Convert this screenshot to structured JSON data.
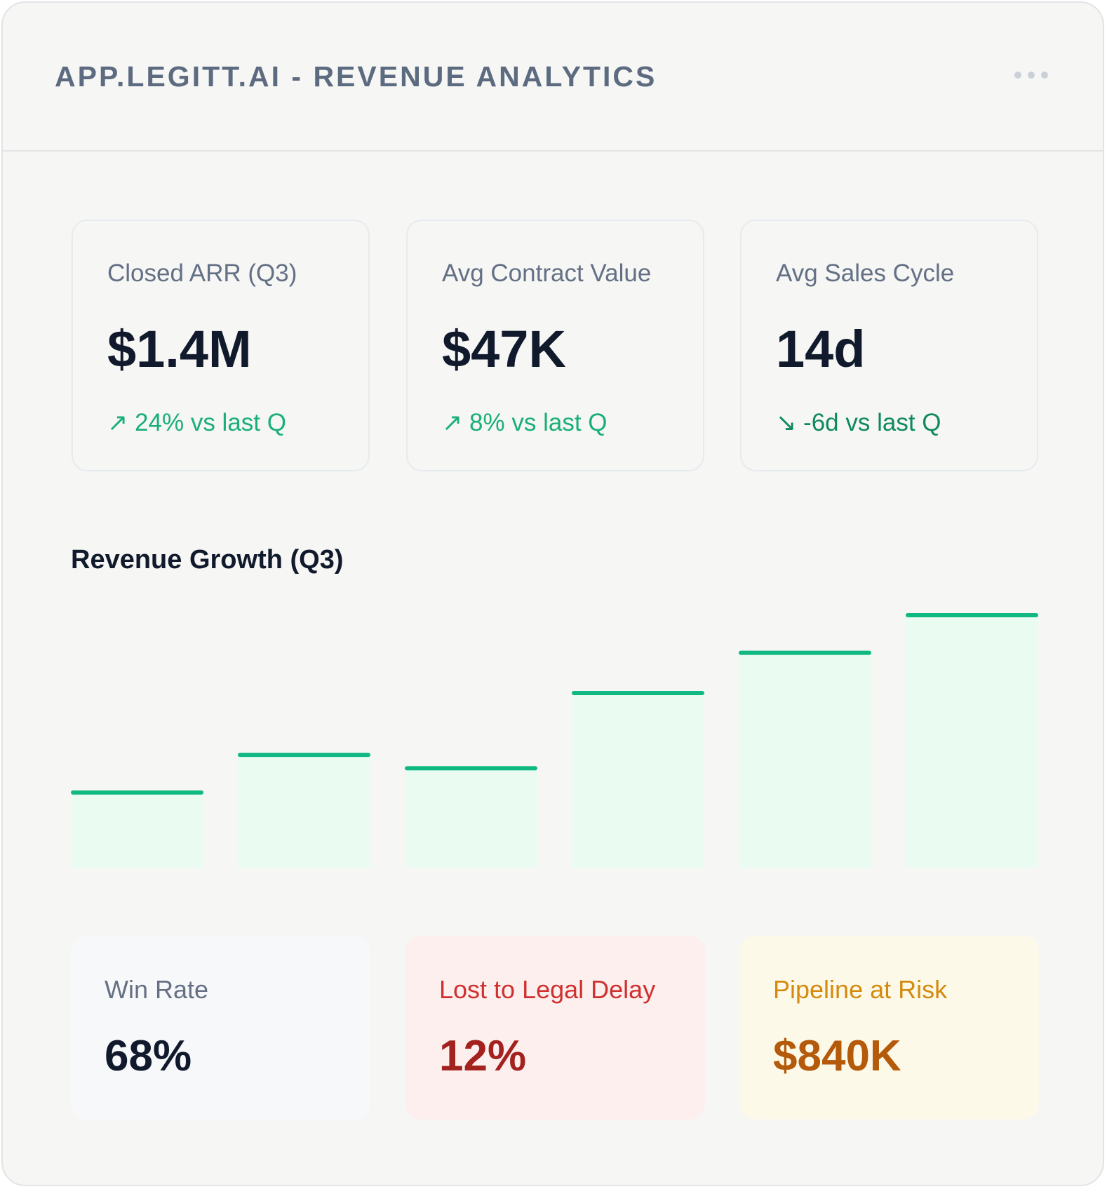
{
  "header": {
    "title": "APP.LEGITT.AI - REVENUE ANALYTICS"
  },
  "kpis": [
    {
      "label": "Closed ARR (Q3)",
      "value": "$1.4M",
      "delta": "↗ 24% vs last Q"
    },
    {
      "label": "Avg Contract Value",
      "value": "$47K",
      "delta": "↗ 8% vs last Q"
    },
    {
      "label": "Avg Sales Cycle",
      "value": "14d",
      "delta": "↘ -6d vs last Q"
    }
  ],
  "chart_data": {
    "type": "bar",
    "title": "Revenue Growth (Q3)",
    "values": [
      28,
      42,
      37,
      65,
      80,
      94
    ],
    "ylim": [
      0,
      100
    ],
    "color": "#10b981",
    "fill": "#eafbf2"
  },
  "stats": [
    {
      "label": "Win Rate",
      "value": "68%"
    },
    {
      "label": "Lost to Legal Delay",
      "value": "12%"
    },
    {
      "label": "Pipeline at Risk",
      "value": "$840K"
    }
  ]
}
